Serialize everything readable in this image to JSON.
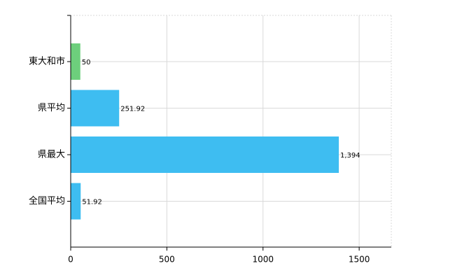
{
  "chart_data": {
    "type": "barh",
    "categories": [
      "東大和市",
      "県平均",
      "県最大",
      "全国平均"
    ],
    "values": [
      50,
      251.92,
      1394,
      51.92
    ],
    "value_labels": [
      "50",
      "251.92",
      "1,394",
      "51.92"
    ],
    "colors": [
      "#6dcf7c",
      "#3ebdf1",
      "#3ebdf1",
      "#3ebdf1"
    ],
    "xlim": [
      0,
      1667
    ],
    "xticks": [
      0,
      500,
      1000,
      1500
    ],
    "grid": true
  }
}
